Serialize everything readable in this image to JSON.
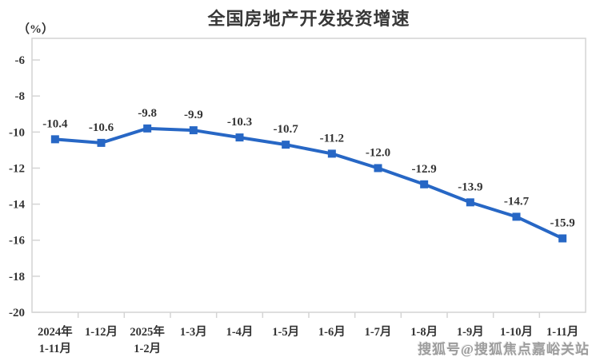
{
  "header": {
    "title": "全国房地产开发投资增速",
    "unit_label": "（%）"
  },
  "watermark": {
    "text": "搜狐号@搜狐焦点嘉峪关站"
  },
  "colors": {
    "line": "#2767c5",
    "marker": "#2767c5",
    "label_text": "#333333",
    "axis": "#d4d4d4",
    "title_text": "#383838",
    "watermark_text": "#9c9c9c"
  },
  "chart_data": {
    "type": "line",
    "title": "全国房地产开发投资增速",
    "ylabel": "（%）",
    "xlabel": "",
    "categories": [
      [
        "2024年",
        "1-11月"
      ],
      [
        "1-12月"
      ],
      [
        "2025年",
        "1-2月"
      ],
      [
        "1-3月"
      ],
      [
        "1-4月"
      ],
      [
        "1-5月"
      ],
      [
        "1-6月"
      ],
      [
        "1-7月"
      ],
      [
        "1-8月"
      ],
      [
        "1-9月"
      ],
      [
        "1-10月"
      ],
      [
        "1-11月"
      ]
    ],
    "series": [
      {
        "name": "全国房地产开发投资增速",
        "values": [
          -10.4,
          -10.6,
          -9.8,
          -9.9,
          -10.3,
          -10.7,
          -11.2,
          -12.0,
          -12.9,
          -13.9,
          -14.7,
          -15.9
        ]
      }
    ],
    "point_labels": [
      "-10.4",
      "-10.6",
      "-9.8",
      "-9.9",
      "-10.3",
      "-10.7",
      "-11.2",
      "-12.0",
      "-12.9",
      "-13.9",
      "-14.7",
      "-15.9"
    ],
    "yticks": [
      -6,
      -8,
      -10,
      -12,
      -14,
      -16,
      -18,
      -20
    ],
    "ylim": [
      -20,
      -4.8
    ],
    "grid": false,
    "legend": "none",
    "marker": "square"
  }
}
